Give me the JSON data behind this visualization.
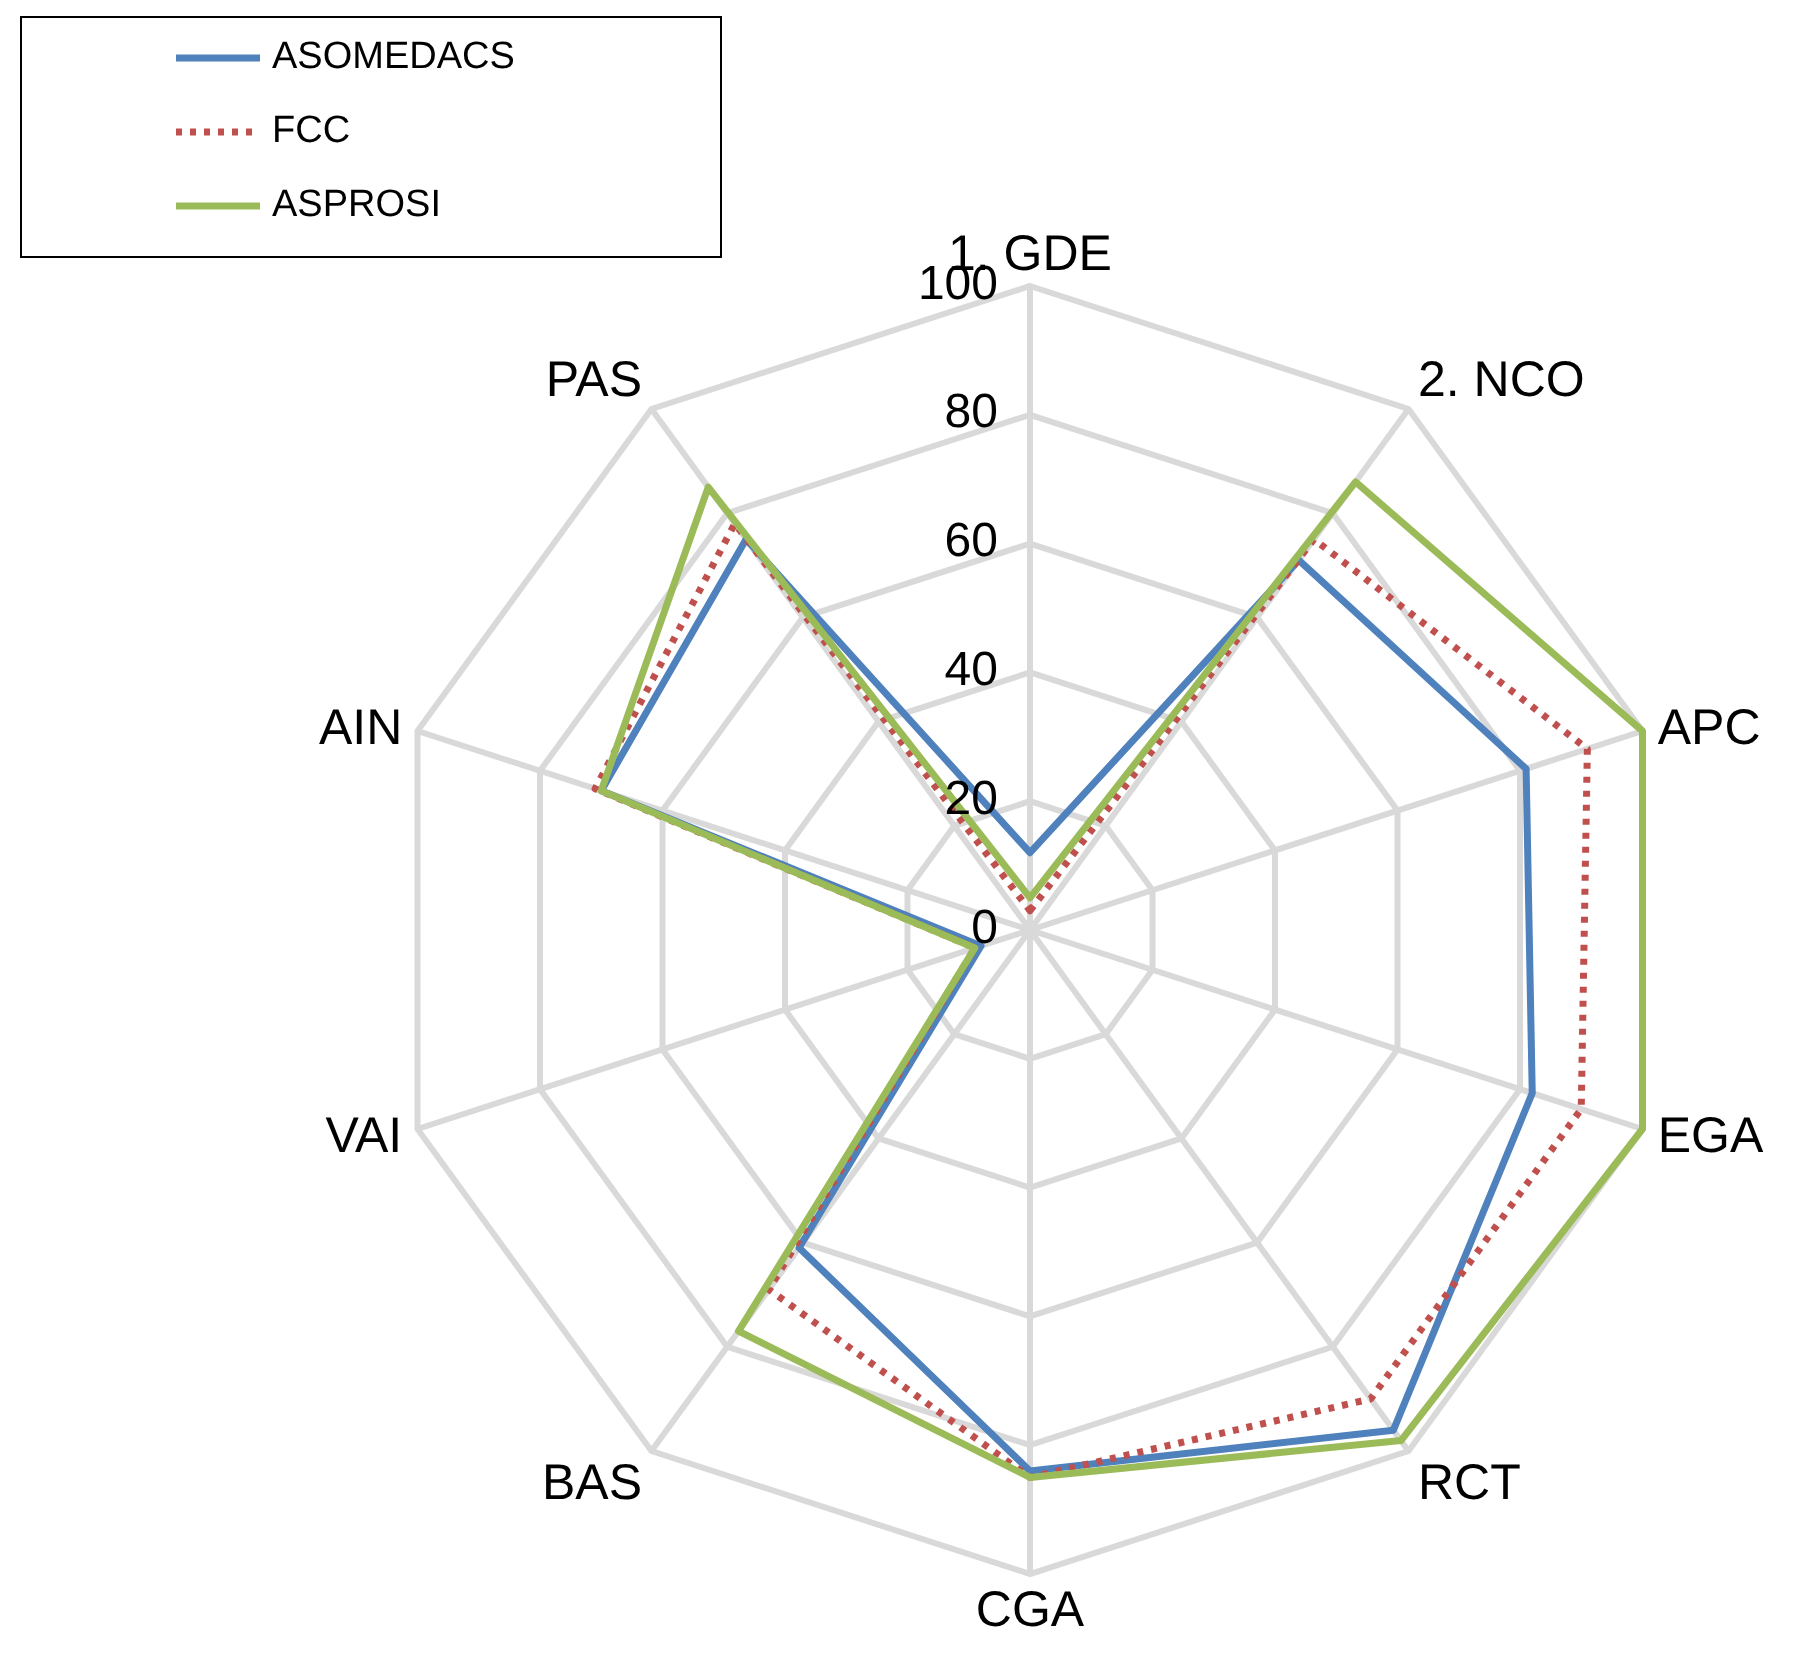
{
  "chart_data": {
    "type": "radar",
    "categories": [
      "1. GDE",
      "2. NCO",
      "APC",
      "EGA",
      "RCT",
      "CGA",
      "BAS",
      "VAI",
      "AIN",
      "PAS"
    ],
    "series": [
      {
        "name": "ASOMEDACS",
        "color": "#4f81bd",
        "line_style": "solid",
        "values": [
          12,
          71,
          81,
          82,
          96,
          84,
          61,
          8,
          70,
          75
        ]
      },
      {
        "name": "FCC",
        "color": "#c0504d",
        "line_style": "dotted",
        "values": [
          3,
          75,
          91,
          90,
          90,
          85,
          69,
          9,
          71,
          78
        ]
      },
      {
        "name": "ASPROSI",
        "color": "#9bbb59",
        "line_style": "solid",
        "values": [
          5,
          86,
          100,
          100,
          98,
          85,
          77,
          9,
          70,
          85
        ]
      }
    ],
    "ylim": [
      0,
      100
    ],
    "yticks": [
      0,
      20,
      40,
      60,
      80,
      100
    ],
    "grid": true,
    "legend": "top left",
    "marker": "none"
  }
}
